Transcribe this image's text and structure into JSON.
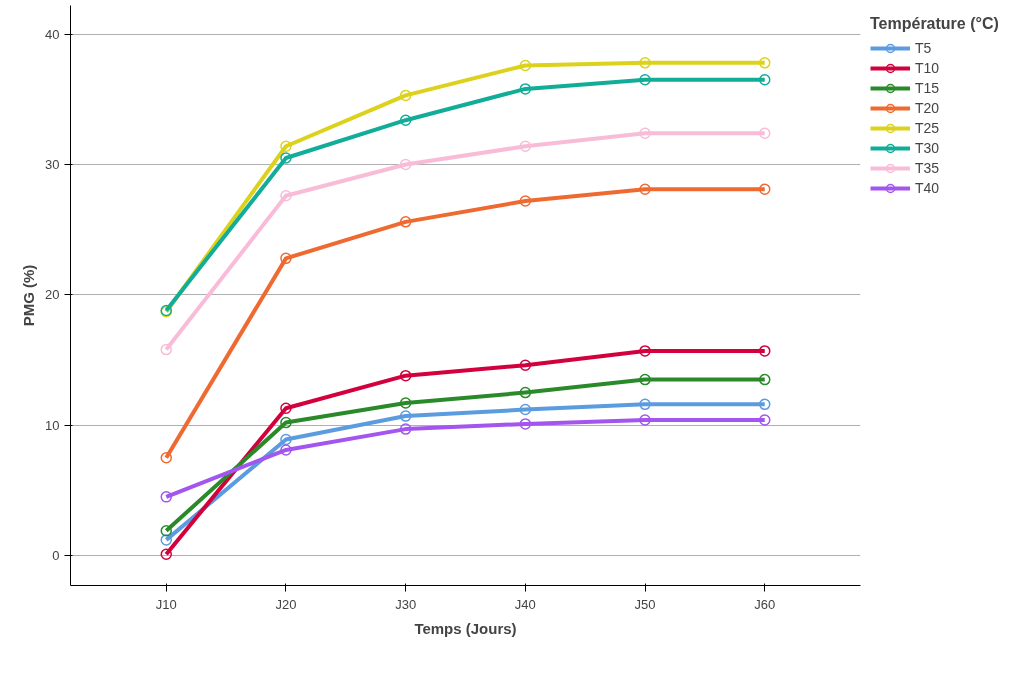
{
  "chart_data": {
    "type": "line",
    "xlabel": "Temps (Jours)",
    "ylabel": "PMG (%)",
    "legend_title": "Température (°C)",
    "categories": [
      "J10",
      "J20",
      "J30",
      "J40",
      "J50",
      "J60"
    ],
    "series": [
      {
        "name": "T5",
        "color": "#5b9be0",
        "values": [
          1.2,
          8.9,
          10.7,
          11.2,
          11.6,
          11.6
        ]
      },
      {
        "name": "T10",
        "color": "#d2003c",
        "values": [
          0.1,
          11.3,
          13.8,
          14.6,
          15.7,
          15.7
        ]
      },
      {
        "name": "T15",
        "color": "#2a8a2a",
        "values": [
          1.9,
          10.2,
          11.7,
          12.5,
          13.5,
          13.5
        ]
      },
      {
        "name": "T20",
        "color": "#ef6a30",
        "values": [
          7.5,
          22.8,
          25.6,
          27.2,
          28.1,
          28.1
        ]
      },
      {
        "name": "T25",
        "color": "#dcd21c",
        "values": [
          18.7,
          31.4,
          35.3,
          37.6,
          37.8,
          37.8
        ]
      },
      {
        "name": "T30",
        "color": "#12ad98",
        "values": [
          18.8,
          30.5,
          33.4,
          35.8,
          36.5,
          36.5
        ]
      },
      {
        "name": "T35",
        "color": "#f8bcd8",
        "values": [
          15.8,
          27.6,
          30.0,
          31.4,
          32.4,
          32.4
        ]
      },
      {
        "name": "T40",
        "color": "#a355ef",
        "values": [
          4.5,
          8.1,
          9.7,
          10.1,
          10.4,
          10.4
        ]
      }
    ],
    "ylim": [
      -2.3,
      42.2
    ],
    "yticks": [
      0,
      10,
      20,
      30,
      40
    ],
    "grid": "y",
    "legend": "top right",
    "marker": "circle",
    "line_style": "solid"
  }
}
